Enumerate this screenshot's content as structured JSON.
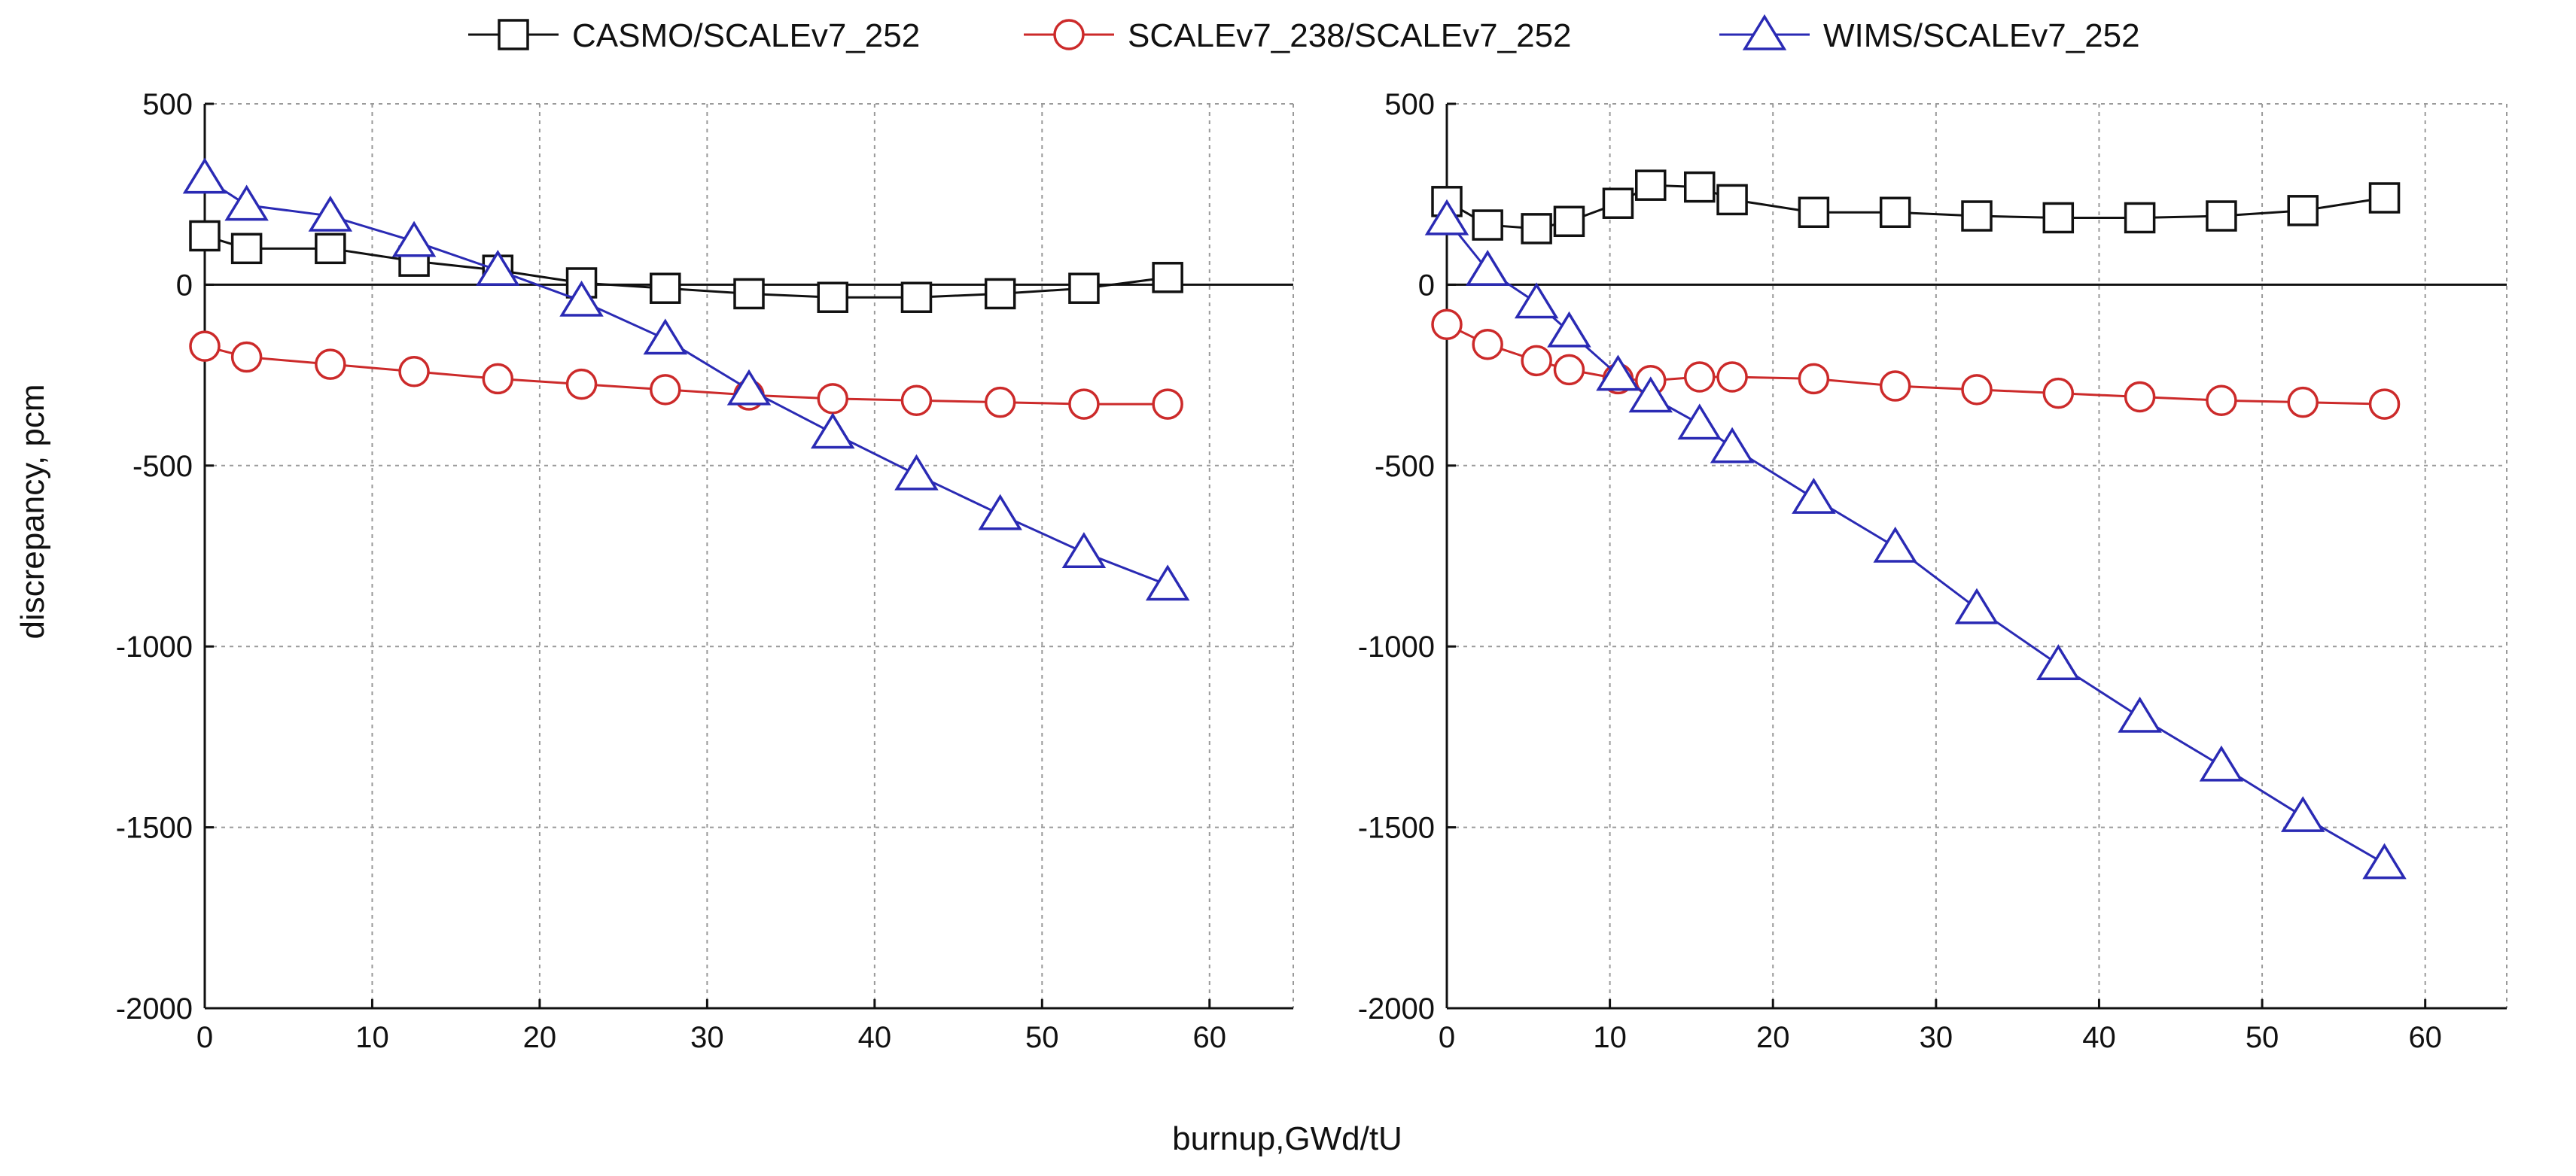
{
  "chart_data": {
    "type": "line",
    "xlabel": "burnup,GWd/tU",
    "ylabel": "discrepancy, pcm",
    "legend_position": "top-center",
    "grid": true,
    "xlim": [
      0,
      65
    ],
    "ylim": [
      -2000,
      500
    ],
    "xticks": [
      "0",
      "10",
      "20",
      "30",
      "40",
      "50",
      "60"
    ],
    "yticks": [
      "500",
      "0",
      "-500",
      "-1000",
      "-1500",
      "-2000"
    ],
    "legend": [
      {
        "name": "CASMO/SCALEv7_252",
        "color": "#111111",
        "marker": "square"
      },
      {
        "name": "SCALEv7_238/SCALEv7_252",
        "color": "#cc2a2a",
        "marker": "circle"
      },
      {
        "name": "WIMS/SCALEv7_252",
        "color": "#2a2ab4",
        "marker": "triangle"
      }
    ],
    "panels": [
      {
        "name": "left",
        "series": [
          {
            "name": "CASMO/SCALEv7_252",
            "color": "#111111",
            "marker": "square",
            "x": [
              0,
              2.5,
              7.5,
              12.5,
              17.5,
              22.5,
              27.5,
              32.5,
              37.5,
              42.5,
              47.5,
              52.5,
              57.5
            ],
            "y": [
              135,
              100,
              100,
              65,
              40,
              5,
              -10,
              -25,
              -35,
              -35,
              -25,
              -10,
              20
            ]
          },
          {
            "name": "SCALEv7_238/SCALEv7_252",
            "color": "#cc2a2a",
            "marker": "circle",
            "x": [
              0,
              2.5,
              7.5,
              12.5,
              17.5,
              22.5,
              27.5,
              32.5,
              37.5,
              42.5,
              47.5,
              52.5,
              57.5
            ],
            "y": [
              -170,
              -200,
              -220,
              -240,
              -260,
              -275,
              -290,
              -305,
              -315,
              -320,
              -325,
              -330,
              -330
            ]
          },
          {
            "name": "WIMS/SCALEv7_252",
            "color": "#2a2ab4",
            "marker": "triangle",
            "x": [
              0,
              2.5,
              7.5,
              12.5,
              17.5,
              22.5,
              27.5,
              32.5,
              37.5,
              42.5,
              47.5,
              52.5,
              57.5
            ],
            "y": [
              295,
              220,
              190,
              120,
              40,
              -45,
              -150,
              -290,
              -410,
              -525,
              -635,
              -740,
              -830
            ]
          }
        ]
      },
      {
        "name": "right",
        "series": [
          {
            "name": "CASMO/SCALEv7_252",
            "color": "#111111",
            "marker": "square",
            "x": [
              0,
              2.5,
              5.5,
              7.5,
              10.5,
              12.5,
              15.5,
              17.5,
              22.5,
              27.5,
              32.5,
              37.5,
              42.5,
              47.5,
              52.5,
              57.5
            ],
            "y": [
              230,
              165,
              155,
              175,
              225,
              275,
              270,
              235,
              200,
              200,
              190,
              185,
              185,
              190,
              205,
              240
            ]
          },
          {
            "name": "SCALEv7_238/SCALEv7_252",
            "color": "#cc2a2a",
            "marker": "circle",
            "x": [
              0,
              2.5,
              5.5,
              7.5,
              10.5,
              12.5,
              15.5,
              17.5,
              22.5,
              27.5,
              32.5,
              37.5,
              42.5,
              47.5,
              52.5,
              57.5
            ],
            "y": [
              -110,
              -165,
              -210,
              -235,
              -260,
              -265,
              -255,
              -255,
              -260,
              -280,
              -290,
              -300,
              -310,
              -320,
              -325,
              -330
            ]
          },
          {
            "name": "WIMS/SCALEv7_252",
            "color": "#2a2ab4",
            "marker": "triangle",
            "x": [
              0,
              2.5,
              5.5,
              7.5,
              10.5,
              12.5,
              15.5,
              17.5,
              22.5,
              27.5,
              32.5,
              37.5,
              42.5,
              47.5,
              52.5,
              57.5
            ],
            "y": [
              180,
              40,
              -50,
              -130,
              -250,
              -310,
              -385,
              -450,
              -590,
              -725,
              -895,
              -1050,
              -1195,
              -1330,
              -1470,
              -1600
            ]
          }
        ]
      }
    ]
  }
}
